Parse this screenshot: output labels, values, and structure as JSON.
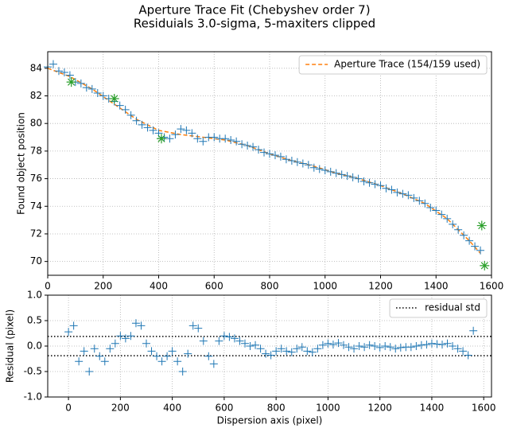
{
  "chart_data": [
    {
      "type": "scatter",
      "title": "Aperture Trace Fit (Chebyshev order 7)",
      "subtitle": "Residuials 3.0-sigma, 5-maxiters clipped",
      "ylabel": "Found object position",
      "x": [
        0,
        20,
        40,
        60,
        80,
        100,
        120,
        140,
        160,
        180,
        200,
        220,
        240,
        260,
        280,
        300,
        320,
        340,
        360,
        380,
        400,
        420,
        440,
        460,
        480,
        500,
        520,
        540,
        560,
        580,
        600,
        620,
        640,
        660,
        680,
        700,
        720,
        740,
        760,
        780,
        800,
        820,
        840,
        860,
        880,
        900,
        920,
        940,
        960,
        980,
        1000,
        1020,
        1040,
        1060,
        1080,
        1100,
        1120,
        1140,
        1160,
        1180,
        1200,
        1220,
        1240,
        1260,
        1280,
        1300,
        1320,
        1340,
        1360,
        1380,
        1400,
        1420,
        1440,
        1460,
        1480,
        1500,
        1520,
        1540,
        1560
      ],
      "values": [
        84.1,
        84.3,
        83.8,
        83.7,
        83.5,
        83.0,
        82.9,
        82.6,
        82.5,
        82.2,
        82.0,
        81.8,
        81.6,
        81.3,
        81.0,
        80.6,
        80.2,
        79.9,
        79.7,
        79.5,
        79.3,
        79.0,
        78.9,
        79.2,
        79.6,
        79.5,
        79.3,
        78.9,
        78.7,
        79.0,
        79.0,
        78.9,
        78.9,
        78.8,
        78.7,
        78.5,
        78.4,
        78.3,
        78.1,
        77.9,
        77.8,
        77.7,
        77.6,
        77.4,
        77.3,
        77.2,
        77.1,
        77.0,
        76.8,
        76.7,
        76.6,
        76.5,
        76.4,
        76.3,
        76.2,
        76.1,
        76.0,
        75.8,
        75.7,
        75.6,
        75.5,
        75.3,
        75.2,
        75.0,
        74.9,
        74.8,
        74.6,
        74.4,
        74.2,
        73.9,
        73.7,
        73.4,
        73.1,
        72.7,
        72.3,
        71.9,
        71.5,
        71.1,
        70.8
      ],
      "color": "#1f77b4",
      "rejected": {
        "x": [
          85,
          240,
          410,
          1565,
          1575
        ],
        "values": [
          83.0,
          81.8,
          78.9,
          72.6,
          69.7
        ],
        "color": "#2ca02c"
      },
      "fit": {
        "name": "Aperture Trace (154/159 used)",
        "color": "#ff7f0e",
        "x": [
          0,
          80,
          160,
          240,
          320,
          400,
          480,
          560,
          640,
          720,
          800,
          880,
          960,
          1040,
          1120,
          1200,
          1280,
          1360,
          1440,
          1520,
          1560
        ],
        "values": [
          84.0,
          83.4,
          82.5,
          81.4,
          80.3,
          79.5,
          79.2,
          79.0,
          78.8,
          78.4,
          77.8,
          77.3,
          76.9,
          76.4,
          76.0,
          75.5,
          74.9,
          74.2,
          73.1,
          71.5,
          70.6
        ]
      },
      "xlim": [
        0,
        1600
      ],
      "ylim": [
        69,
        85.2
      ],
      "xticks": [
        0,
        200,
        400,
        600,
        800,
        1000,
        1200,
        1400,
        1600
      ],
      "yticks": [
        70,
        72,
        74,
        76,
        78,
        80,
        82,
        84
      ],
      "grid": true,
      "legend": "upper right"
    },
    {
      "type": "scatter",
      "xlabel": "Dispersion axis (pixel)",
      "ylabel": "Residual (pixel)",
      "x": [
        0,
        20,
        40,
        60,
        80,
        100,
        120,
        140,
        160,
        180,
        200,
        220,
        240,
        260,
        280,
        300,
        320,
        340,
        360,
        380,
        400,
        420,
        440,
        460,
        480,
        500,
        520,
        540,
        560,
        580,
        600,
        620,
        640,
        660,
        680,
        700,
        720,
        740,
        760,
        780,
        800,
        820,
        840,
        860,
        880,
        900,
        920,
        940,
        960,
        980,
        1000,
        1020,
        1040,
        1060,
        1080,
        1100,
        1120,
        1140,
        1160,
        1180,
        1200,
        1220,
        1240,
        1260,
        1280,
        1300,
        1320,
        1340,
        1360,
        1380,
        1400,
        1420,
        1440,
        1460,
        1480,
        1500,
        1520,
        1540,
        1560
      ],
      "values": [
        0.28,
        0.4,
        -0.3,
        -0.1,
        -0.5,
        -0.05,
        -0.2,
        -0.3,
        -0.05,
        0.05,
        0.2,
        0.15,
        0.2,
        0.45,
        0.4,
        0.05,
        -0.1,
        -0.2,
        -0.3,
        -0.2,
        -0.1,
        -0.3,
        -0.5,
        -0.15,
        0.4,
        0.35,
        0.1,
        -0.2,
        -0.35,
        0.1,
        0.2,
        0.18,
        0.15,
        0.1,
        0.05,
        0.0,
        0.02,
        -0.05,
        -0.15,
        -0.18,
        -0.1,
        -0.05,
        -0.1,
        -0.12,
        -0.05,
        -0.02,
        -0.1,
        -0.12,
        -0.05,
        0.02,
        0.05,
        0.03,
        0.06,
        0.02,
        -0.02,
        -0.05,
        0.0,
        -0.02,
        0.02,
        0.0,
        -0.03,
        0.0,
        -0.02,
        -0.05,
        -0.03,
        -0.02,
        -0.02,
        0.0,
        0.02,
        0.03,
        0.05,
        0.04,
        0.03,
        0.05,
        0.0,
        -0.05,
        -0.1,
        -0.18,
        0.3
      ],
      "color": "#1f77b4",
      "hlines": {
        "name": "residual std",
        "color": "#000000",
        "values": [
          0.19,
          -0.19
        ]
      },
      "xlim": [
        -80,
        1630
      ],
      "ylim": [
        -1,
        1
      ],
      "xticks": [
        0,
        200,
        400,
        600,
        800,
        1000,
        1200,
        1400,
        1600
      ],
      "yticks": [
        {
          "value": -1,
          "label": "-1.0"
        },
        {
          "value": -0.5,
          "label": "-0.5"
        },
        {
          "value": 0,
          "label": "0.0"
        },
        {
          "value": 0.5,
          "label": "0.5"
        },
        {
          "value": 1,
          "label": "1.0"
        }
      ],
      "grid": true,
      "legend": "upper right"
    }
  ]
}
